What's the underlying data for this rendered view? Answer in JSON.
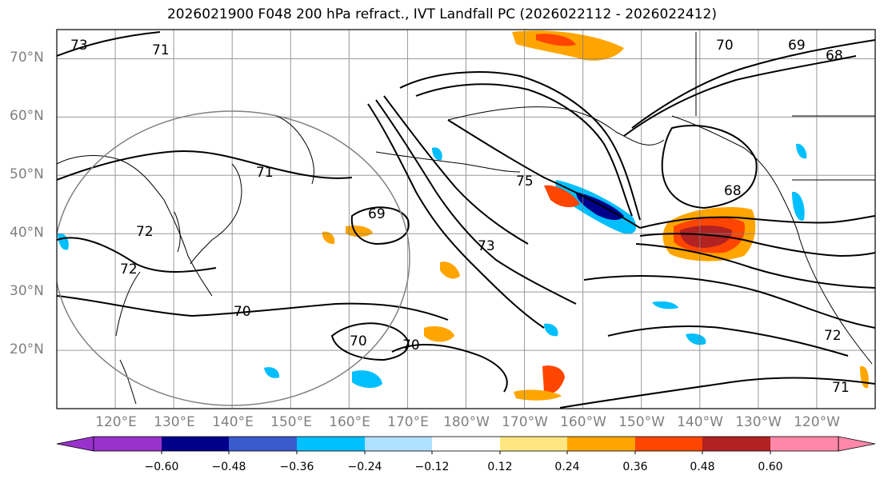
{
  "title": "2026021900 F048 200 hPa refract., IVT Landfall PC (2026022112 - 2026022412)",
  "map": {
    "projection": "cylindrical",
    "extent": {
      "lon_min": 110,
      "lon_max": 250,
      "lat_min": 10,
      "lat_max": 75
    },
    "lat_labels": [
      "70°N",
      "60°N",
      "50°N",
      "40°N",
      "30°N",
      "20°N"
    ],
    "lon_labels": [
      "120°E",
      "130°E",
      "140°E",
      "150°E",
      "160°E",
      "170°E",
      "180°W",
      "170°W",
      "160°W",
      "150°W",
      "140°W",
      "130°W",
      "120°W"
    ],
    "contour_labels": [
      "73",
      "71",
      "70",
      "69",
      "68",
      "71",
      "69",
      "75",
      "73",
      "68",
      "72",
      "70",
      "70",
      "70",
      "72",
      "71",
      "72"
    ],
    "colors": {
      "coast": "#000000",
      "grid": "#808080",
      "contour": "#000000"
    }
  },
  "colorbar": {
    "ticks": [
      "−0.60",
      "−0.48",
      "−0.36",
      "−0.24",
      "−0.12",
      "0.12",
      "0.24",
      "0.36",
      "0.48",
      "0.60"
    ],
    "colors": [
      "#9932cc",
      "#00008b",
      "#3a5bcc",
      "#00bfff",
      "#b0e0ff",
      "#ffffff",
      "#ffe680",
      "#ffa500",
      "#ff4500",
      "#b22222",
      "#ff88aa"
    ]
  }
}
